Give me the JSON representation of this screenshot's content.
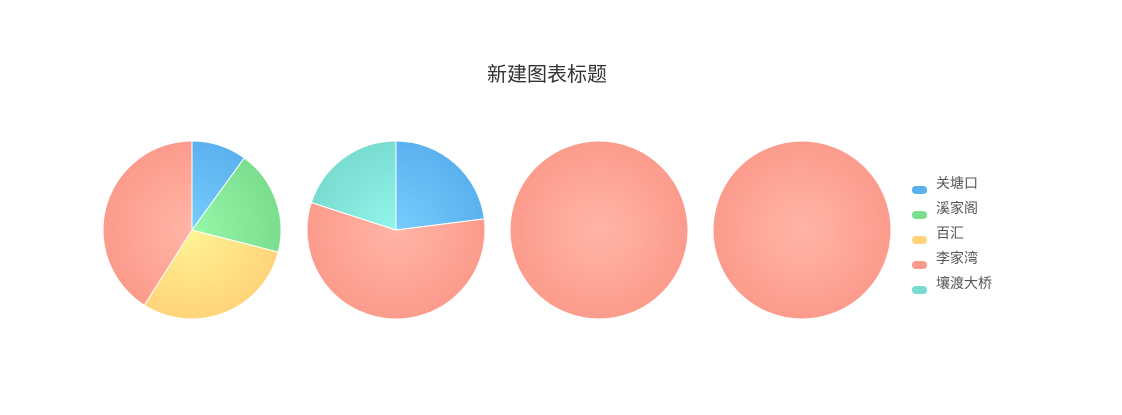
{
  "colors": [
    "#5ab1ef",
    "#7bde8e",
    "#ffd47a",
    "#fc9b8c",
    "#79dcd0"
  ],
  "colors_light": [
    "#75cdfc",
    "#95f8a8",
    "#fff394",
    "#ffb5a6",
    "#93f6ea"
  ],
  "chart_data": {
    "type": "pie",
    "title": "新建图表标题",
    "legend": {
      "position": "right",
      "items": [
        "关塘口",
        "溪家阁",
        "百汇",
        "李家湾",
        "壤渡大桥"
      ]
    },
    "pies": [
      {
        "slices": [
          {
            "name": "关塘口",
            "value": 10
          },
          {
            "name": "溪家阁",
            "value": 19
          },
          {
            "name": "百汇",
            "value": 30
          },
          {
            "name": "李家湾",
            "value": 41
          }
        ]
      },
      {
        "slices": [
          {
            "name": "关塘口",
            "value": 23
          },
          {
            "name": "李家湾",
            "value": 57
          },
          {
            "name": "壤渡大桥",
            "value": 20
          }
        ]
      },
      {
        "slices": [
          {
            "name": "李家湾",
            "value": 100
          }
        ]
      },
      {
        "slices": [
          {
            "name": "李家湾",
            "value": 100
          }
        ]
      }
    ]
  }
}
